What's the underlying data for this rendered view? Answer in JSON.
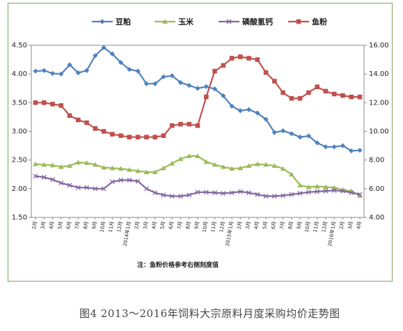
{
  "chart_data": {
    "type": "line",
    "caption": "图4  2013～2016年饲料大宗原料月度采购均价走势图",
    "note": "注：鱼粉价格参考右侧刻度值",
    "x_labels": [
      "2月",
      "3月",
      "4月",
      "5月",
      "6月",
      "7月",
      "8月",
      "9月",
      "10月",
      "11月",
      "12月",
      "2014年1月",
      "2月",
      "3月",
      "4月",
      "5月",
      "6月",
      "7月",
      "8月",
      "9月",
      "10月",
      "11月",
      "12月",
      "2015年1月",
      "2月",
      "3月",
      "4月",
      "5月",
      "6月",
      "7月",
      "8月",
      "9月",
      "10月",
      "11月",
      "12月",
      "2016年1月",
      "2月",
      "3月",
      "4月"
    ],
    "left_axis": {
      "min": 1.5,
      "max": 4.5,
      "ticks": [
        "1.50",
        "2.00",
        "2.50",
        "3.00",
        "3.50",
        "4.00",
        "4.50"
      ]
    },
    "right_axis": {
      "min": 4.0,
      "max": 16.0,
      "ticks": [
        "4.00",
        "6.00",
        "8.00",
        "10.00",
        "12.00",
        "14.00",
        "16.00"
      ]
    },
    "series": [
      {
        "name": "豆粕",
        "axis": "left",
        "color": "#4f81bd",
        "marker": "diamond",
        "values": [
          4.05,
          4.06,
          4.01,
          4.0,
          4.16,
          4.02,
          4.06,
          4.32,
          4.46,
          4.35,
          4.2,
          4.08,
          4.05,
          3.83,
          3.83,
          3.95,
          3.97,
          3.85,
          3.8,
          3.75,
          3.78,
          3.74,
          3.62,
          3.44,
          3.36,
          3.38,
          3.32,
          3.21,
          2.98,
          3.01,
          2.96,
          2.9,
          2.92,
          2.8,
          2.73,
          2.73,
          2.75,
          2.66,
          2.67
        ]
      },
      {
        "name": "玉米",
        "axis": "left",
        "color": "#9bbb59",
        "marker": "triangle",
        "values": [
          2.43,
          2.42,
          2.41,
          2.38,
          2.4,
          2.46,
          2.45,
          2.42,
          2.37,
          2.36,
          2.35,
          2.33,
          2.31,
          2.29,
          2.29,
          2.36,
          2.44,
          2.52,
          2.57,
          2.57,
          2.47,
          2.42,
          2.38,
          2.35,
          2.36,
          2.4,
          2.43,
          2.42,
          2.4,
          2.35,
          2.25,
          2.06,
          2.03,
          2.04,
          2.03,
          2.02,
          1.98,
          1.96,
          1.88
        ]
      },
      {
        "name": "磷酸氢钙",
        "axis": "left",
        "color": "#8064a2",
        "marker": "x",
        "values": [
          2.22,
          2.2,
          2.16,
          2.1,
          2.06,
          2.02,
          2.02,
          2.0,
          2.0,
          2.12,
          2.15,
          2.15,
          2.13,
          2.0,
          1.93,
          1.89,
          1.87,
          1.87,
          1.89,
          1.94,
          1.94,
          1.93,
          1.92,
          1.93,
          1.95,
          1.93,
          1.9,
          1.87,
          1.87,
          1.88,
          1.9,
          1.92,
          1.94,
          1.95,
          1.96,
          1.97,
          1.96,
          1.93,
          1.9
        ]
      },
      {
        "name": "鱼粉",
        "axis": "right",
        "color": "#c0504d",
        "marker": "square",
        "values": [
          12.0,
          12.0,
          11.9,
          11.8,
          11.1,
          10.8,
          10.6,
          10.2,
          10.0,
          9.8,
          9.7,
          9.6,
          9.6,
          9.6,
          9.6,
          9.7,
          10.4,
          10.5,
          10.5,
          10.4,
          12.4,
          14.2,
          14.6,
          15.1,
          15.2,
          15.1,
          15.0,
          14.1,
          13.5,
          12.7,
          12.3,
          12.3,
          12.7,
          13.1,
          12.8,
          12.6,
          12.5,
          12.4,
          12.4
        ]
      }
    ]
  }
}
